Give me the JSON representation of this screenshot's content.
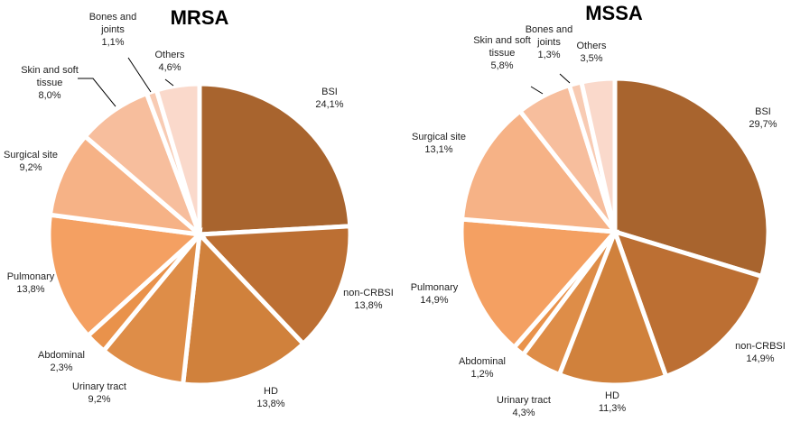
{
  "chart_data": [
    {
      "type": "pie",
      "title": "MRSA",
      "slices": [
        {
          "label": "BSI",
          "value_label": "24,1%",
          "value": 24.1,
          "color": "#A8642E"
        },
        {
          "label": "non-CRBSI",
          "value_label": "13,8%",
          "value": 13.8,
          "color": "#BC6F33"
        },
        {
          "label": "HD",
          "value_label": "13,8%",
          "value": 13.8,
          "color": "#D0813C"
        },
        {
          "label": "Urinary tract",
          "value_label": "9,2%",
          "value": 9.2,
          "color": "#DE8D48"
        },
        {
          "label": "Abdominal",
          "value_label": "2,3%",
          "value": 2.3,
          "color": "#E9924B"
        },
        {
          "label": "Pulmonary",
          "value_label": "13,8%",
          "value": 13.8,
          "color": "#F4A062"
        },
        {
          "label": "Surgical site",
          "value_label": "9,2%",
          "value": 9.2,
          "color": "#F6B286"
        },
        {
          "label": "Skin and soft tissue",
          "label_lines": [
            "Skin and soft",
            "tissue"
          ],
          "value_label": "8,0%",
          "value": 8.0,
          "color": "#F7BE9D"
        },
        {
          "label": "Bones and joints",
          "label_lines": [
            "Bones and",
            "joints"
          ],
          "value_label": "1,1%",
          "value": 1.1,
          "color": "#F8CBB3"
        },
        {
          "label": "Others",
          "value_label": "4,6%",
          "value": 4.6,
          "color": "#FAD9CB"
        }
      ]
    },
    {
      "type": "pie",
      "title": "MSSA",
      "slices": [
        {
          "label": "BSI",
          "value_label": "29,7%",
          "value": 29.7,
          "color": "#A8642E"
        },
        {
          "label": "non-CRBSI",
          "value_label": "14,9%",
          "value": 14.9,
          "color": "#BC6F33"
        },
        {
          "label": "HD",
          "value_label": "11,3%",
          "value": 11.3,
          "color": "#D0813C"
        },
        {
          "label": "Urinary tract",
          "value_label": "4,3%",
          "value": 4.3,
          "color": "#DE8D48"
        },
        {
          "label": "Abdominal",
          "value_label": "1,2%",
          "value": 1.2,
          "color": "#E9924B"
        },
        {
          "label": "Pulmonary",
          "value_label": "14,9%",
          "value": 14.9,
          "color": "#F4A062"
        },
        {
          "label": "Surgical site",
          "value_label": "13,1%",
          "value": 13.1,
          "color": "#F6B286"
        },
        {
          "label": "Skin and soft tissue",
          "label_lines": [
            "Skin and soft",
            "tissue"
          ],
          "value_label": "5,8%",
          "value": 5.8,
          "color": "#F7BE9D"
        },
        {
          "label": "Bones and joints",
          "label_lines": [
            "Bones and",
            "joints"
          ],
          "value_label": "1,3%",
          "value": 1.3,
          "color": "#F8CBB3"
        },
        {
          "label": "Others",
          "value_label": "3,5%",
          "value": 3.5,
          "color": "#FAD9CB"
        }
      ]
    }
  ]
}
